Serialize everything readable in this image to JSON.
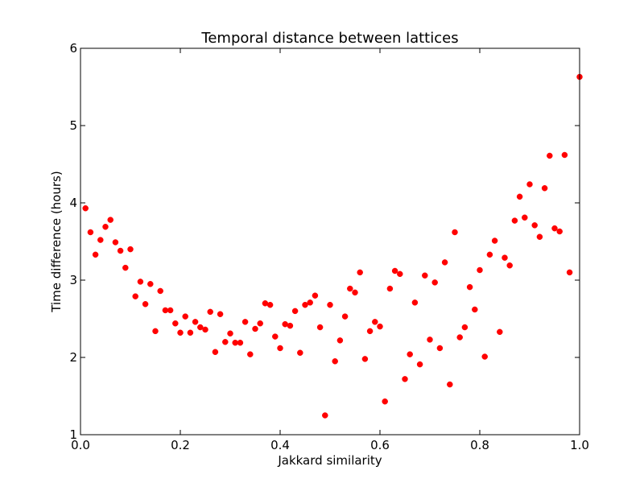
{
  "chart_data": {
    "type": "scatter",
    "title": "Temporal distance between lattices",
    "xlabel": "Jakkard similarity",
    "ylabel": "Time difference (hours)",
    "xlim": [
      0.0,
      1.0
    ],
    "ylim": [
      1,
      6
    ],
    "x_ticks": [
      "0.0",
      "0.2",
      "0.4",
      "0.6",
      "0.8",
      "1.0"
    ],
    "y_ticks": [
      "1",
      "2",
      "3",
      "4",
      "5",
      "6"
    ],
    "grid": false,
    "marker_color": "#ff0000",
    "series": [
      {
        "x": [
          0.01,
          0.02,
          0.03,
          0.04,
          0.05,
          0.06,
          0.07,
          0.08,
          0.09,
          0.1,
          0.11,
          0.12,
          0.13,
          0.14,
          0.15,
          0.16,
          0.17,
          0.18,
          0.19,
          0.2,
          0.21,
          0.22,
          0.23,
          0.24,
          0.25,
          0.26,
          0.27,
          0.28,
          0.29,
          0.3,
          0.31,
          0.32,
          0.33,
          0.34,
          0.35,
          0.36,
          0.37,
          0.38,
          0.39,
          0.4,
          0.41,
          0.42,
          0.43,
          0.44,
          0.45,
          0.46,
          0.47,
          0.48,
          0.49,
          0.5,
          0.51,
          0.52,
          0.53,
          0.54,
          0.55,
          0.56,
          0.57,
          0.58,
          0.59,
          0.6,
          0.61,
          0.62,
          0.63,
          0.64,
          0.65,
          0.66,
          0.67,
          0.68,
          0.69,
          0.7,
          0.71,
          0.72,
          0.73,
          0.74,
          0.75,
          0.76,
          0.77,
          0.78,
          0.79,
          0.8,
          0.81,
          0.82,
          0.83,
          0.84,
          0.85,
          0.86,
          0.87,
          0.88,
          0.89,
          0.9,
          0.91,
          0.92,
          0.93,
          0.94,
          0.95,
          0.96,
          0.97,
          0.98,
          1.0
        ],
        "y": [
          3.93,
          3.62,
          3.33,
          3.52,
          3.69,
          3.78,
          3.49,
          3.38,
          3.16,
          3.4,
          2.79,
          2.98,
          2.69,
          2.95,
          2.34,
          2.86,
          2.61,
          2.61,
          2.44,
          2.32,
          2.53,
          2.32,
          2.46,
          2.39,
          2.36,
          2.59,
          2.07,
          2.56,
          2.2,
          2.31,
          2.19,
          2.19,
          2.46,
          2.04,
          2.37,
          2.44,
          2.7,
          2.68,
          2.27,
          2.12,
          2.43,
          2.41,
          2.6,
          2.06,
          2.68,
          2.71,
          2.8,
          2.39,
          1.25,
          2.68,
          1.95,
          2.22,
          2.53,
          2.89,
          2.84,
          3.1,
          1.98,
          2.34,
          2.46,
          2.4,
          1.43,
          2.89,
          3.12,
          3.08,
          1.72,
          2.04,
          2.71,
          1.91,
          3.06,
          2.23,
          2.97,
          2.12,
          3.23,
          1.65,
          3.62,
          2.26,
          2.39,
          2.91,
          2.62,
          3.13,
          2.01,
          3.33,
          3.51,
          2.33,
          3.29,
          3.19,
          3.77,
          4.08,
          3.81,
          4.24,
          3.71,
          3.56,
          4.19,
          4.61,
          3.67,
          3.63,
          4.62,
          3.1,
          5.63
        ]
      }
    ]
  }
}
